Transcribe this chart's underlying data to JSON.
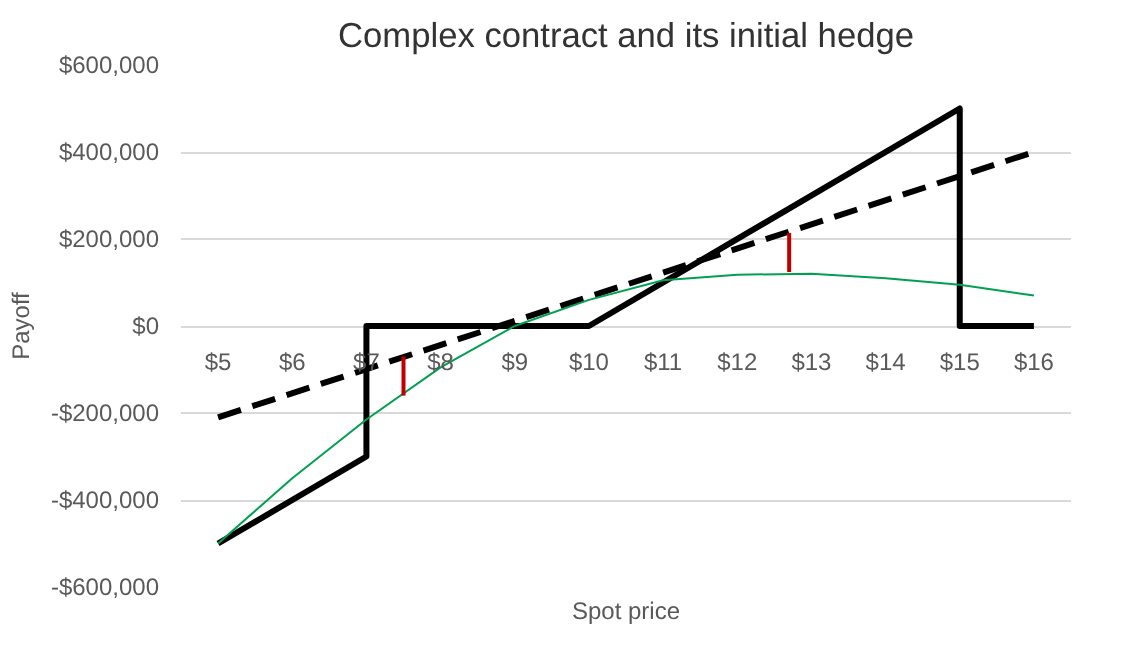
{
  "chart_data": {
    "type": "line",
    "title": "Complex contract and its initial hedge",
    "xlabel": "Spot price",
    "ylabel": "Payoff",
    "xlim": [
      4.5,
      16.5
    ],
    "xticks": [
      {
        "value": 5,
        "label": "$5"
      },
      {
        "value": 6,
        "label": "$6"
      },
      {
        "value": 7,
        "label": "$7"
      },
      {
        "value": 8,
        "label": "$8"
      },
      {
        "value": 9,
        "label": "$9"
      },
      {
        "value": 10,
        "label": "$10"
      },
      {
        "value": 11,
        "label": "$11"
      },
      {
        "value": 12,
        "label": "$12"
      },
      {
        "value": 13,
        "label": "$13"
      },
      {
        "value": 14,
        "label": "$14"
      },
      {
        "value": 15,
        "label": "$15"
      },
      {
        "value": 16,
        "label": "$16"
      }
    ],
    "ylim": [
      -600000,
      600000
    ],
    "yticks": [
      {
        "value": -600000,
        "label": "-$600,000"
      },
      {
        "value": -400000,
        "label": "-$400,000"
      },
      {
        "value": -200000,
        "label": "-$200,000"
      },
      {
        "value": 0,
        "label": "$0"
      },
      {
        "value": 200000,
        "label": "$200,000"
      },
      {
        "value": 400000,
        "label": "$400,000"
      },
      {
        "value": 600000,
        "label": "$600,000"
      }
    ],
    "grid": "y",
    "marker": "none",
    "series": [
      {
        "color": "#000000",
        "line_style": "solid",
        "x": [
          5,
          7,
          7,
          10,
          15,
          15,
          16
        ],
        "values": [
          -500000,
          -300000,
          0,
          0,
          500000,
          0,
          0
        ]
      },
      {
        "color": "#000000",
        "line_style": "dashed",
        "x": [
          5,
          16
        ],
        "values": [
          -210000,
          400000
        ]
      },
      {
        "color": "#00a050",
        "line_style": "solid",
        "x": [
          5,
          6,
          7,
          8,
          9,
          10,
          11,
          12,
          13,
          14,
          15,
          16
        ],
        "values": [
          -500000,
          -350000,
          -215000,
          -95000,
          0,
          60000,
          105000,
          118000,
          120000,
          110000,
          95000,
          70000
        ]
      },
      {
        "color": "#c00000",
        "line_style": "solid",
        "x": [
          7.5,
          7.5
        ],
        "values": [
          -160000,
          -70000
        ]
      },
      {
        "color": "#c00000",
        "line_style": "solid",
        "x": [
          12.7,
          12.7
        ],
        "values": [
          124000,
          214000
        ]
      }
    ]
  }
}
